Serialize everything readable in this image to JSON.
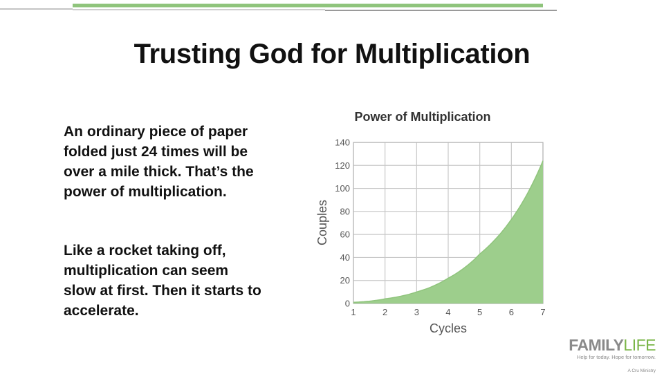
{
  "slide": {
    "title": "Trusting God for Multiplication",
    "paragraph1": "An ordinary piece of paper folded just 24 times will be over a mile thick. That’s the power of multiplication.",
    "paragraph2": "Like a rocket taking off, multiplication can seem slow at first. Then it starts to accelerate."
  },
  "logo": {
    "brand_part1": "FAMILY",
    "brand_part2": "LIFE",
    "tagline": "Help for today. Hope for tomorrow.",
    "sub": "A Cru Ministry"
  },
  "colors": {
    "accent_green": "#7ab648",
    "area_fill": "#9dce8c",
    "area_line": "#8fc47c",
    "gray_line": "#9a9a9a",
    "grid": "#c8c8c8"
  },
  "chart_data": {
    "type": "area",
    "title": "Power of Multiplication",
    "xlabel": "Cycles",
    "ylabel": "Couples",
    "x": [
      1,
      2,
      3,
      4,
      5,
      6,
      7
    ],
    "series": [
      {
        "values": [
          1,
          4,
          10,
          22,
          43,
          73,
          124
        ]
      }
    ],
    "xticks": [
      "1",
      "2",
      "3",
      "4",
      "5",
      "6",
      "7"
    ],
    "yticks": [
      "0",
      "20",
      "40",
      "60",
      "80",
      "100",
      "120",
      "140"
    ],
    "xlim": [
      1,
      7
    ],
    "ylim": [
      0,
      140
    ],
    "grid": true
  }
}
